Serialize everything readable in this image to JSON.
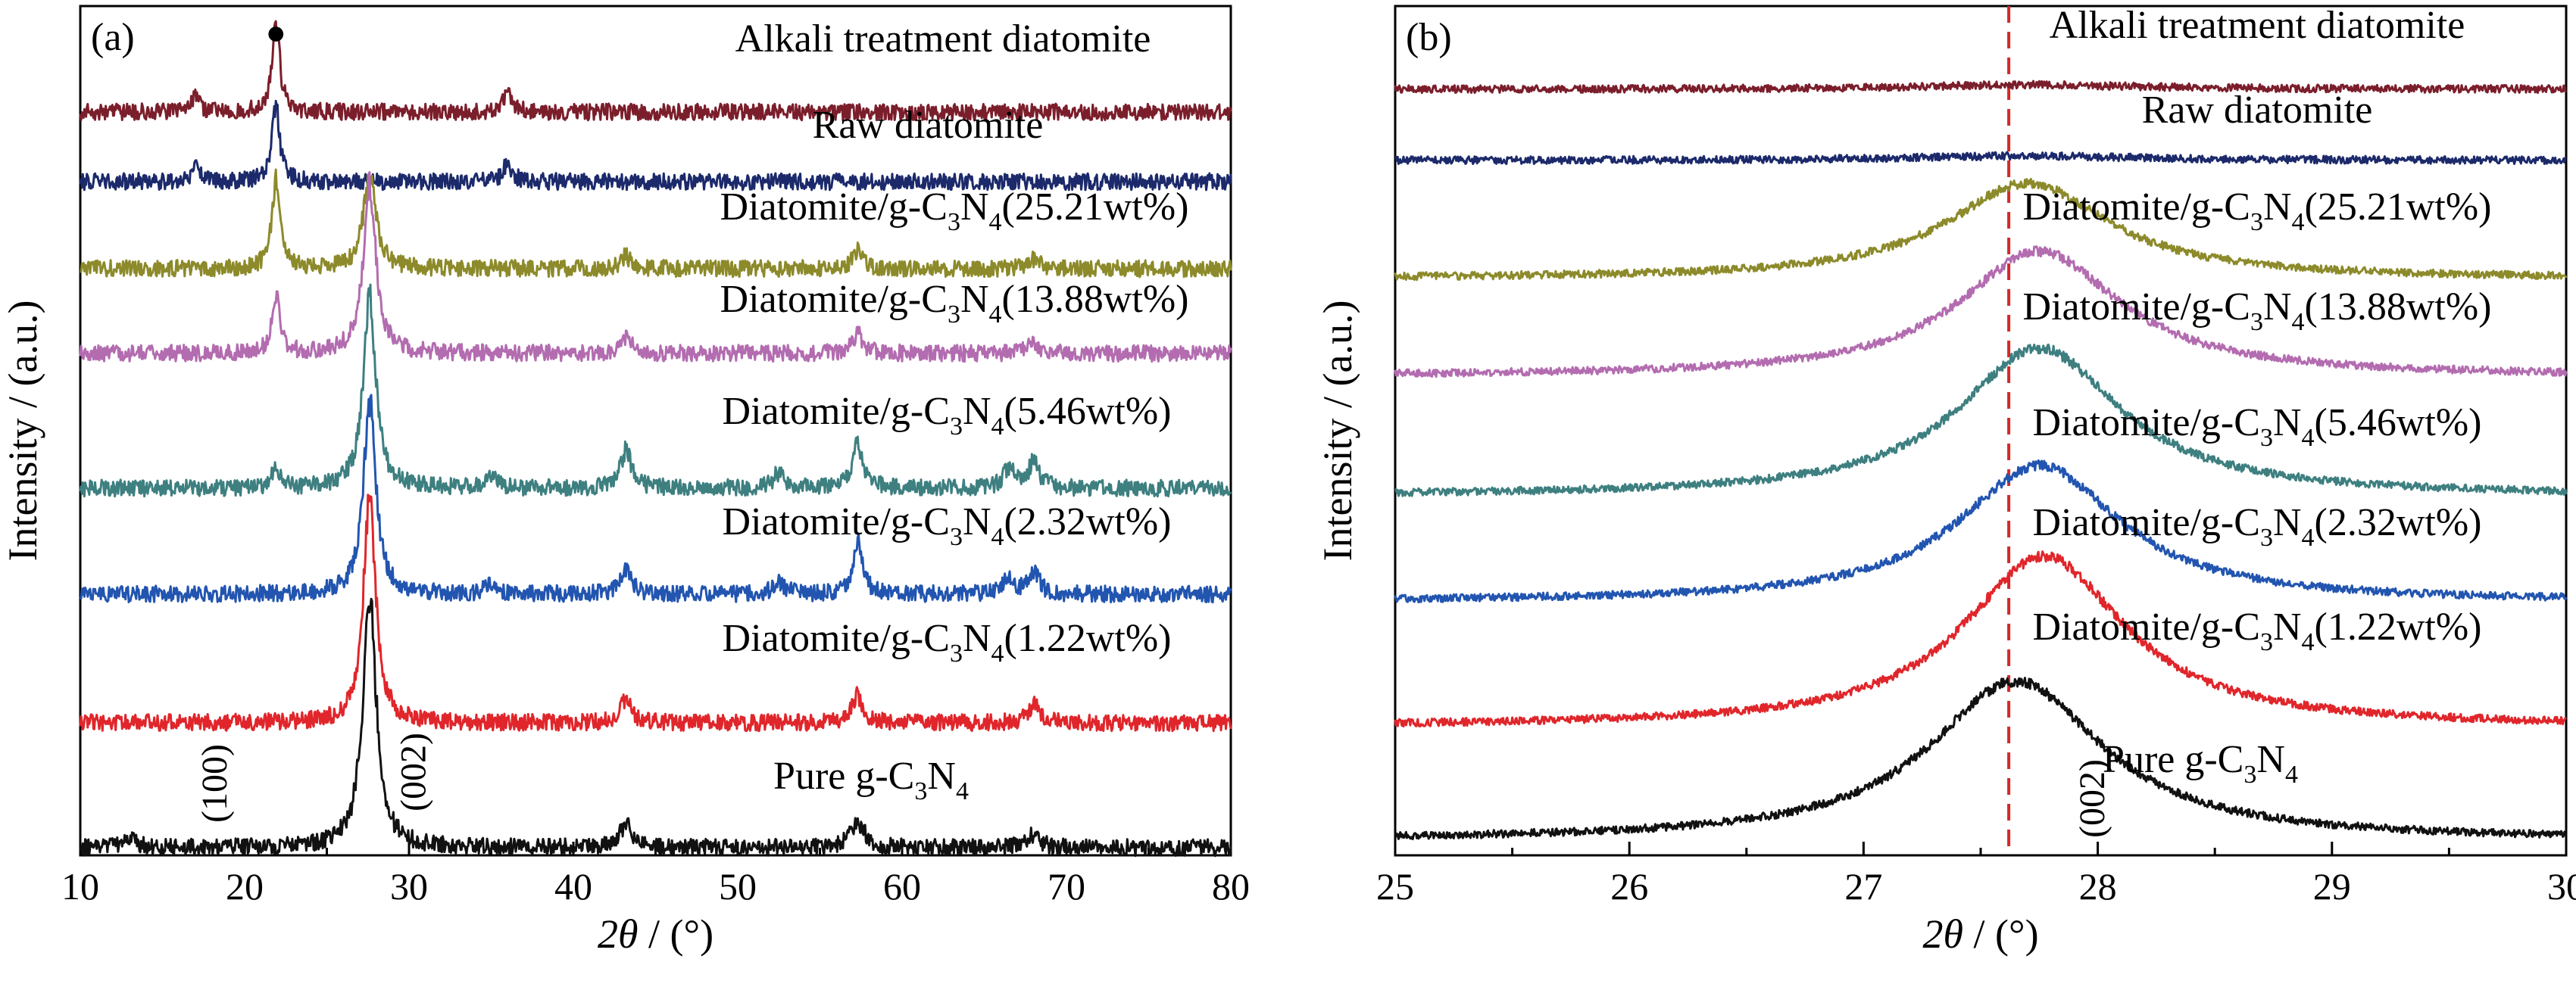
{
  "chart_data": [
    {
      "type": "line",
      "panel_label": "(a)",
      "xlabel_italic": "2θ",
      "xlabel_unit": " / (°)",
      "ylabel": "Intensity / (a.u.)",
      "xlim": [
        10,
        80
      ],
      "xticks": [
        10,
        20,
        30,
        40,
        50,
        60,
        70,
        80
      ],
      "yticks_shown": false,
      "peak_marker": {
        "symbol": "●",
        "x": 21.9
      },
      "annotations": [
        {
          "text": "(100)",
          "x": 13.0
        },
        {
          "text": "(002)",
          "x": 27.4
        }
      ],
      "series": [
        {
          "label": "Alkali treatment diatomite",
          "color": "#7b1e2b",
          "peaks": [
            {
              "x": 21.9,
              "h": 0.72,
              "w": 0.28
            },
            {
              "x": 17.0,
              "h": 0.12,
              "w": 0.3
            },
            {
              "x": 36.0,
              "h": 0.14,
              "w": 0.35
            }
          ]
        },
        {
          "label": "Raw diatomite",
          "color": "#1c2a6b",
          "peaks": [
            {
              "x": 21.9,
              "h": 0.6,
              "w": 0.28
            },
            {
              "x": 17.0,
              "h": 0.12,
              "w": 0.3
            },
            {
              "x": 36.0,
              "h": 0.14,
              "w": 0.35
            }
          ]
        },
        {
          "label": "Diatomite/g-C3N4(25.21wt%)",
          "main": "Diatomite/g-C",
          "s1": "3",
          "m2": "N",
          "s2": "4",
          "tail": "(25.21wt%)",
          "color": "#8c8a2a",
          "peaks": [
            {
              "x": 21.9,
              "h": 0.7,
              "w": 0.3
            },
            {
              "x": 27.6,
              "h": 0.75,
              "w": 0.45
            },
            {
              "x": 43.2,
              "h": 0.1,
              "w": 0.4
            },
            {
              "x": 57.3,
              "h": 0.14,
              "w": 0.4
            },
            {
              "x": 68.0,
              "h": 0.08,
              "w": 0.4
            }
          ]
        },
        {
          "label": "Diatomite/g-C3N4(13.88wt%)",
          "main": "Diatomite/g-C",
          "s1": "3",
          "m2": "N",
          "s2": "4",
          "tail": "(13.88wt%)",
          "color": "#b36cb0",
          "peaks": [
            {
              "x": 21.9,
              "h": 0.45,
              "w": 0.3
            },
            {
              "x": 27.6,
              "h": 1.35,
              "w": 0.45
            },
            {
              "x": 43.2,
              "h": 0.12,
              "w": 0.4
            },
            {
              "x": 57.3,
              "h": 0.15,
              "w": 0.4
            },
            {
              "x": 68.0,
              "h": 0.1,
              "w": 0.4
            }
          ]
        },
        {
          "label": "Diatomite/g-C3N4(5.46wt%)",
          "main": "Diatomite/g-C",
          "s1": "3",
          "m2": "N",
          "s2": "4",
          "tail": "(5.46wt%)",
          "color": "#3e7f80",
          "peaks": [
            {
              "x": 21.9,
              "h": 0.15,
              "w": 0.3
            },
            {
              "x": 27.6,
              "h": 1.55,
              "w": 0.45
            },
            {
              "x": 35.0,
              "h": 0.1,
              "w": 0.4
            },
            {
              "x": 43.2,
              "h": 0.3,
              "w": 0.4
            },
            {
              "x": 52.5,
              "h": 0.12,
              "w": 0.4
            },
            {
              "x": 57.3,
              "h": 0.35,
              "w": 0.4
            },
            {
              "x": 66.5,
              "h": 0.15,
              "w": 0.4
            },
            {
              "x": 68.0,
              "h": 0.2,
              "w": 0.4
            }
          ]
        },
        {
          "label": "Diatomite/g-C3N4(2.32wt%)",
          "main": "Diatomite/g-C",
          "s1": "3",
          "m2": "N",
          "s2": "4",
          "tail": "(2.32wt%)",
          "color": "#2255b0",
          "peaks": [
            {
              "x": 27.6,
              "h": 1.55,
              "w": 0.45
            },
            {
              "x": 35.0,
              "h": 0.08,
              "w": 0.4
            },
            {
              "x": 43.2,
              "h": 0.2,
              "w": 0.4
            },
            {
              "x": 52.5,
              "h": 0.1,
              "w": 0.4
            },
            {
              "x": 57.3,
              "h": 0.4,
              "w": 0.35
            },
            {
              "x": 66.5,
              "h": 0.12,
              "w": 0.4
            },
            {
              "x": 68.0,
              "h": 0.18,
              "w": 0.4
            }
          ]
        },
        {
          "label": "Diatomite/g-C3N4(1.22wt%)",
          "main": "Diatomite/g-C",
          "s1": "3",
          "m2": "N",
          "s2": "4",
          "tail": "(1.22wt%)",
          "color": "#e0262b",
          "peaks": [
            {
              "x": 27.6,
              "h": 1.8,
              "w": 0.45
            },
            {
              "x": 43.2,
              "h": 0.18,
              "w": 0.4
            },
            {
              "x": 57.3,
              "h": 0.22,
              "w": 0.4
            },
            {
              "x": 68.0,
              "h": 0.15,
              "w": 0.4
            }
          ]
        },
        {
          "label": "Pure g-C3N4",
          "main": "Pure g-C",
          "s1": "3",
          "m2": "N",
          "s2": "4",
          "tail": "",
          "color": "#111111",
          "peaks": [
            {
              "x": 27.6,
              "h": 2.0,
              "w": 0.5
            },
            {
              "x": 13.0,
              "h": 0.06,
              "w": 0.5
            },
            {
              "x": 43.2,
              "h": 0.18,
              "w": 0.5
            },
            {
              "x": 57.3,
              "h": 0.2,
              "w": 0.5
            },
            {
              "x": 68.0,
              "h": 0.1,
              "w": 0.5
            }
          ]
        }
      ]
    },
    {
      "type": "line",
      "panel_label": "(b)",
      "xlabel_italic": "2θ",
      "xlabel_unit": " / (°)",
      "ylabel": "Intensity / (a.u.)",
      "xlim": [
        25,
        30
      ],
      "xticks": [
        25,
        26,
        27,
        28,
        29,
        30
      ],
      "yticks_shown": false,
      "reference_line": {
        "x": 27.62,
        "style": "dashed",
        "color": "#d62728"
      },
      "annotations": [
        {
          "text": "(002)",
          "x": 27.8
        }
      ],
      "series": [
        {
          "label": "Alkali treatment diatomite",
          "color": "#7b1e2b",
          "peak": {
            "x": 27.7,
            "h": 0.02,
            "w": 0.6
          }
        },
        {
          "label": "Raw diatomite",
          "color": "#1c2a6b",
          "peak": {
            "x": 27.7,
            "h": 0.02,
            "w": 0.6
          }
        },
        {
          "label": "Diatomite/g-C3N4(25.21wt%)",
          "main": "Diatomite/g-C",
          "s1": "3",
          "m2": "N",
          "s2": "4",
          "tail": "(25.21wt%)",
          "color": "#8c8a2a",
          "peak": {
            "x": 27.7,
            "h": 0.42,
            "w": 0.42
          }
        },
        {
          "label": "Diatomite/g-C3N4(13.88wt%)",
          "main": "Diatomite/g-C",
          "s1": "3",
          "m2": "N",
          "s2": "4",
          "tail": "(13.88wt%)",
          "color": "#b36cb0",
          "peak": {
            "x": 27.75,
            "h": 0.55,
            "w": 0.42
          }
        },
        {
          "label": "Diatomite/g-C3N4(5.46wt%)",
          "main": "Diatomite/g-C",
          "s1": "3",
          "m2": "N",
          "s2": "4",
          "tail": "(5.46wt%)",
          "color": "#3e7f80",
          "peak": {
            "x": 27.75,
            "h": 0.65,
            "w": 0.42
          }
        },
        {
          "label": "Diatomite/g-C3N4(2.32wt%)",
          "main": "Diatomite/g-C",
          "s1": "3",
          "m2": "N",
          "s2": "4",
          "tail": "(2.32wt%)",
          "color": "#2255b0",
          "peak": {
            "x": 27.75,
            "h": 0.6,
            "w": 0.42
          }
        },
        {
          "label": "Diatomite/g-C3N4(1.22wt%)",
          "main": "Diatomite/g-C",
          "s1": "3",
          "m2": "N",
          "s2": "4",
          "tail": "(1.22wt%)",
          "color": "#e0262b",
          "peak": {
            "x": 27.77,
            "h": 0.75,
            "w": 0.42
          }
        },
        {
          "label": "Pure g-C3N4",
          "main": "Pure g-C",
          "s1": "3",
          "m2": "N",
          "s2": "4",
          "tail": "",
          "color": "#111111",
          "peak": {
            "x": 27.65,
            "h": 0.7,
            "w": 0.45
          }
        }
      ]
    }
  ]
}
